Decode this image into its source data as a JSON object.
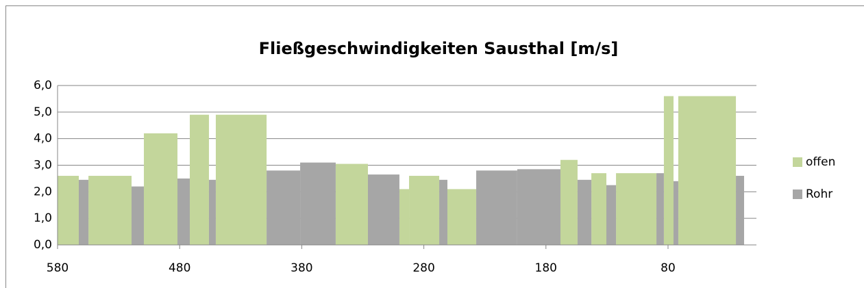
{
  "chart_data": {
    "type": "histogram",
    "title": "Fließgeschwindigkeiten Sausthal [m/s]",
    "bins": [
      580,
      562.6,
      554.7,
      519.4,
      509.3,
      481.8,
      471.7,
      456,
      450.4,
      408.8,
      381.3,
      352.2,
      325.8,
      300,
      292.1,
      267.4,
      260.7,
      237.1,
      203.5,
      168.1,
      154.1,
      142.8,
      130.5,
      122.6,
      89.5,
      83.4,
      75.5,
      71.6,
      24.4,
      17.7
    ],
    "series": [
      {
        "name": "offen",
        "color": "#c3d69b",
        "values": [
          2.6,
          null,
          2.6,
          null,
          4.2,
          null,
          4.9,
          null,
          4.9,
          null,
          null,
          3.05,
          null,
          2.1,
          2.6,
          null,
          2.1,
          null,
          null,
          3.2,
          null,
          2.7,
          null,
          2.7,
          null,
          5.6,
          null,
          5.6,
          null
        ]
      },
      {
        "name": "Rohr",
        "color": "#a6a6a6",
        "values": [
          null,
          2.45,
          null,
          2.2,
          null,
          2.5,
          null,
          2.45,
          null,
          2.8,
          3.1,
          null,
          2.65,
          null,
          null,
          2.45,
          null,
          2.8,
          2.85,
          null,
          2.45,
          null,
          2.25,
          null,
          2.7,
          null,
          2.4,
          null,
          2.6
        ]
      }
    ],
    "xlim": [
      580,
      7.6
    ],
    "xticks": [
      580,
      480,
      380,
      280,
      180,
      80
    ],
    "ylim": [
      0,
      6
    ],
    "yticks": [
      {
        "value": 0,
        "label": "0,0"
      },
      {
        "value": 1,
        "label": "1,0"
      },
      {
        "value": 2,
        "label": "2,0"
      },
      {
        "value": 3,
        "label": "3,0"
      },
      {
        "value": 4,
        "label": "4,0"
      },
      {
        "value": 5,
        "label": "5,0"
      },
      {
        "value": 6,
        "label": "6,0"
      }
    ],
    "grid": true,
    "legend": "right"
  }
}
